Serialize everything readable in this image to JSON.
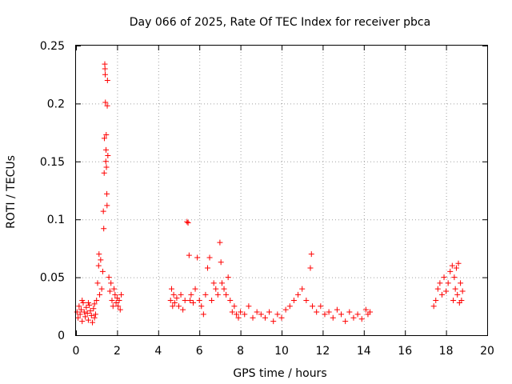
{
  "chart_data": {
    "type": "scatter",
    "title": "Day 066 of 2025, Rate Of TEC Index for receiver pbca",
    "xlabel": "GPS time / hours",
    "ylabel": "ROTI / TECUs",
    "xlim": [
      0,
      20
    ],
    "ylim": [
      0,
      0.25
    ],
    "xticks": [
      0,
      2,
      4,
      6,
      8,
      10,
      12,
      14,
      16,
      18,
      20
    ],
    "yticks": [
      0,
      0.05,
      0.1,
      0.15,
      0.2,
      0.25
    ],
    "xtick_labels": [
      "0",
      "2",
      "4",
      "6",
      "8",
      "10",
      "12",
      "14",
      "16",
      "18",
      "20"
    ],
    "ytick_labels": [
      "0",
      "0.05",
      "0.1",
      "0.15",
      "0.2",
      "0.25"
    ],
    "grid": true,
    "marker": "+",
    "series": [
      {
        "name": "ROTI",
        "color": "#ff0000",
        "points": [
          [
            0.05,
            0.02
          ],
          [
            0.1,
            0.015
          ],
          [
            0.15,
            0.025
          ],
          [
            0.2,
            0.018
          ],
          [
            0.25,
            0.022
          ],
          [
            0.3,
            0.012
          ],
          [
            0.35,
            0.028
          ],
          [
            0.4,
            0.02
          ],
          [
            0.45,
            0.016
          ],
          [
            0.5,
            0.024
          ],
          [
            0.55,
            0.019
          ],
          [
            0.6,
            0.013
          ],
          [
            0.65,
            0.026
          ],
          [
            0.7,
            0.021
          ],
          [
            0.75,
            0.017
          ],
          [
            0.8,
            0.011
          ],
          [
            0.85,
            0.023
          ],
          [
            0.9,
            0.027
          ],
          [
            0.95,
            0.018
          ],
          [
            1.0,
            0.03
          ],
          [
            1.05,
            0.045
          ],
          [
            1.1,
            0.06
          ],
          [
            1.12,
            0.07
          ],
          [
            1.15,
            0.035
          ],
          [
            1.2,
            0.065
          ],
          [
            1.25,
            0.04
          ],
          [
            1.3,
            0.055
          ],
          [
            1.33,
            0.107
          ],
          [
            1.35,
            0.092
          ],
          [
            1.37,
            0.14
          ],
          [
            1.38,
            0.17
          ],
          [
            1.4,
            0.234
          ],
          [
            1.41,
            0.23
          ],
          [
            1.42,
            0.225
          ],
          [
            1.43,
            0.201
          ],
          [
            1.45,
            0.15
          ],
          [
            1.46,
            0.16
          ],
          [
            1.47,
            0.173
          ],
          [
            1.48,
            0.145
          ],
          [
            1.5,
            0.122
          ],
          [
            1.51,
            0.112
          ],
          [
            1.52,
            0.198
          ],
          [
            1.53,
            0.22
          ],
          [
            1.55,
            0.155
          ],
          [
            1.6,
            0.05
          ],
          [
            1.65,
            0.038
          ],
          [
            1.7,
            0.045
          ],
          [
            1.75,
            0.03
          ],
          [
            1.8,
            0.025
          ],
          [
            1.85,
            0.04
          ],
          [
            1.9,
            0.035
          ],
          [
            1.95,
            0.028
          ],
          [
            2.0,
            0.032
          ],
          [
            2.05,
            0.025
          ],
          [
            2.1,
            0.03
          ],
          [
            2.15,
            0.022
          ],
          [
            2.2,
            0.035
          ],
          [
            0.3,
            0.03
          ],
          [
            0.6,
            0.028
          ],
          [
            0.9,
            0.015
          ],
          [
            4.6,
            0.03
          ],
          [
            4.65,
            0.04
          ],
          [
            4.7,
            0.025
          ],
          [
            4.75,
            0.035
          ],
          [
            4.8,
            0.028
          ],
          [
            4.9,
            0.032
          ],
          [
            5.0,
            0.025
          ],
          [
            5.1,
            0.035
          ],
          [
            5.2,
            0.022
          ],
          [
            5.3,
            0.03
          ],
          [
            5.4,
            0.098
          ],
          [
            5.45,
            0.097
          ],
          [
            5.5,
            0.069
          ],
          [
            5.55,
            0.03
          ],
          [
            5.6,
            0.035
          ],
          [
            5.7,
            0.028
          ],
          [
            5.8,
            0.04
          ],
          [
            5.9,
            0.067
          ],
          [
            6.0,
            0.03
          ],
          [
            6.1,
            0.025
          ],
          [
            6.2,
            0.018
          ],
          [
            6.3,
            0.035
          ],
          [
            6.4,
            0.058
          ],
          [
            6.5,
            0.067
          ],
          [
            6.6,
            0.03
          ],
          [
            6.7,
            0.045
          ],
          [
            6.8,
            0.04
          ],
          [
            6.9,
            0.035
          ],
          [
            7.0,
            0.08
          ],
          [
            7.05,
            0.063
          ],
          [
            7.1,
            0.045
          ],
          [
            7.2,
            0.04
          ],
          [
            7.3,
            0.035
          ],
          [
            7.4,
            0.05
          ],
          [
            7.5,
            0.03
          ],
          [
            7.6,
            0.02
          ],
          [
            7.7,
            0.025
          ],
          [
            7.8,
            0.018
          ],
          [
            7.9,
            0.015
          ],
          [
            8.0,
            0.02
          ],
          [
            8.2,
            0.018
          ],
          [
            8.4,
            0.025
          ],
          [
            8.6,
            0.015
          ],
          [
            8.8,
            0.02
          ],
          [
            9.0,
            0.018
          ],
          [
            9.2,
            0.015
          ],
          [
            9.4,
            0.02
          ],
          [
            9.6,
            0.012
          ],
          [
            9.8,
            0.018
          ],
          [
            10.0,
            0.015
          ],
          [
            10.2,
            0.022
          ],
          [
            10.4,
            0.025
          ],
          [
            10.6,
            0.03
          ],
          [
            10.8,
            0.035
          ],
          [
            11.0,
            0.04
          ],
          [
            11.2,
            0.03
          ],
          [
            11.4,
            0.058
          ],
          [
            11.45,
            0.07
          ],
          [
            11.5,
            0.025
          ],
          [
            11.7,
            0.02
          ],
          [
            11.9,
            0.025
          ],
          [
            12.1,
            0.018
          ],
          [
            12.3,
            0.02
          ],
          [
            12.5,
            0.015
          ],
          [
            12.7,
            0.022
          ],
          [
            12.9,
            0.018
          ],
          [
            13.1,
            0.012
          ],
          [
            13.3,
            0.02
          ],
          [
            13.5,
            0.015
          ],
          [
            13.7,
            0.018
          ],
          [
            13.9,
            0.014
          ],
          [
            14.1,
            0.022
          ],
          [
            14.2,
            0.018
          ],
          [
            14.3,
            0.02
          ],
          [
            17.4,
            0.025
          ],
          [
            17.5,
            0.03
          ],
          [
            17.6,
            0.04
          ],
          [
            17.7,
            0.045
          ],
          [
            17.8,
            0.035
          ],
          [
            17.9,
            0.05
          ],
          [
            18.0,
            0.038
          ],
          [
            18.1,
            0.045
          ],
          [
            18.2,
            0.055
          ],
          [
            18.3,
            0.06
          ],
          [
            18.35,
            0.03
          ],
          [
            18.4,
            0.05
          ],
          [
            18.45,
            0.04
          ],
          [
            18.5,
            0.058
          ],
          [
            18.55,
            0.035
          ],
          [
            18.6,
            0.062
          ],
          [
            18.65,
            0.028
          ],
          [
            18.7,
            0.045
          ],
          [
            18.75,
            0.03
          ],
          [
            18.8,
            0.038
          ]
        ]
      }
    ]
  }
}
